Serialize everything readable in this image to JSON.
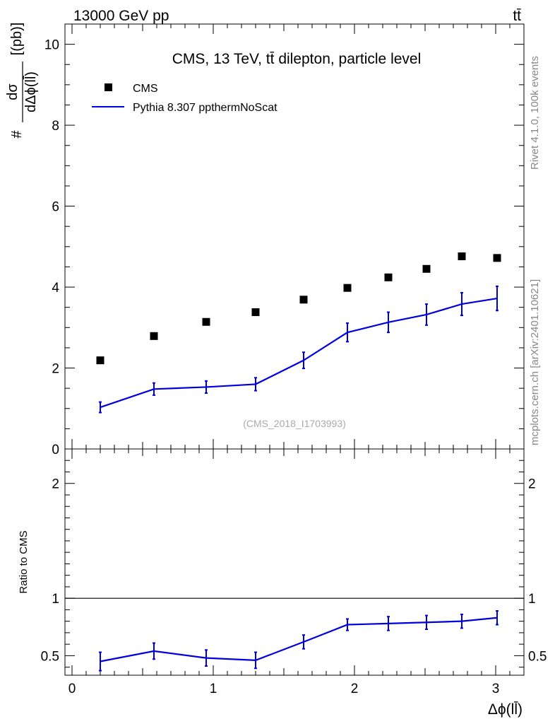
{
  "header": {
    "energy_label": "13000 GeV pp",
    "process_label": "tt̄"
  },
  "side_labels": {
    "rivet": "Rivet 4.1.0,  100k events",
    "source": "mcplots.cern.ch [arXiv:2401.10621]"
  },
  "chart_data": [
    {
      "type": "scatter",
      "panel": "main",
      "title": "CMS, 13 TeV, tt̄ dilepton, particle level",
      "watermark": "(CMS_2018_I1703993)",
      "ylabel_parts": [
        "#",
        "dσ",
        "dΔϕ(ll̄)",
        "[(pb)]"
      ],
      "xlim": [
        -0.05,
        3.2
      ],
      "ylim": [
        0,
        10.5
      ],
      "yticks": [
        0,
        2,
        4,
        6,
        8,
        10
      ],
      "ytick_labels": [
        "0",
        "2",
        "4",
        "6",
        "8",
        "10"
      ],
      "legend": {
        "position": "top-left",
        "entries": [
          "CMS",
          "Pythia 8.307 ppthermNoScat"
        ]
      },
      "series": [
        {
          "name": "CMS",
          "style": "markers",
          "color": "#000000",
          "x": [
            0.2,
            0.58,
            0.95,
            1.3,
            1.64,
            1.95,
            2.24,
            2.51,
            2.76,
            3.01
          ],
          "y": [
            2.19,
            2.79,
            3.14,
            3.38,
            3.69,
            3.98,
            4.24,
            4.45,
            4.76,
            4.72
          ]
        },
        {
          "name": "Pythia 8.307 ppthermNoScat",
          "style": "line",
          "color": "#0000dd",
          "x": [
            0.2,
            0.58,
            0.95,
            1.3,
            1.64,
            1.95,
            2.24,
            2.51,
            2.76,
            3.01
          ],
          "y": [
            1.03,
            1.48,
            1.53,
            1.6,
            2.19,
            2.88,
            3.13,
            3.32,
            3.58,
            3.72
          ],
          "yerr": [
            0.13,
            0.15,
            0.15,
            0.16,
            0.2,
            0.23,
            0.25,
            0.26,
            0.28,
            0.3
          ]
        }
      ]
    },
    {
      "type": "line",
      "panel": "ratio",
      "ylabel": "Ratio to CMS",
      "xlabel": "Δϕ(ll̄)",
      "xlim": [
        -0.05,
        3.2
      ],
      "ylim": [
        0.33,
        2.3
      ],
      "yticks": [
        0.5,
        1,
        2
      ],
      "ytick_labels": [
        "0.5",
        "1",
        "2"
      ],
      "xticks": [
        0,
        1,
        2,
        3
      ],
      "xtick_labels": [
        "0",
        "1",
        "2",
        "3"
      ],
      "reference_line": 1,
      "series": [
        {
          "name": "Pythia 8.307 ppthermNoScat",
          "color": "#0000dd",
          "x": [
            0.2,
            0.58,
            0.95,
            1.3,
            1.64,
            1.95,
            2.24,
            2.51,
            2.76,
            3.01
          ],
          "y": [
            0.45,
            0.54,
            0.48,
            0.46,
            0.62,
            0.77,
            0.78,
            0.79,
            0.8,
            0.83
          ],
          "yerr": [
            0.08,
            0.07,
            0.07,
            0.07,
            0.06,
            0.05,
            0.06,
            0.06,
            0.06,
            0.06
          ]
        }
      ]
    }
  ]
}
